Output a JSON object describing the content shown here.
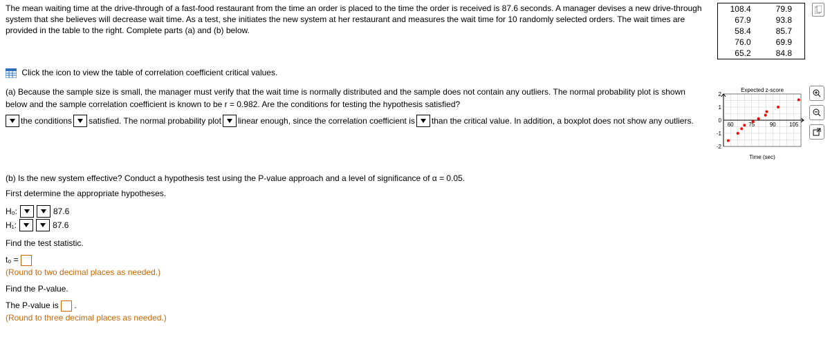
{
  "problem_text": "The mean waiting time at the drive-through of a fast-food restaurant from the time an order is placed to the time the order is received is 87.6 seconds. A manager devises a new drive-through system that she believes will decrease wait time. As a test, she initiates the new system at her restaurant and measures the wait time for 10 randomly selected orders. The wait times are provided in the table to the right. Complete parts (a) and (b) below.",
  "data_rows": [
    [
      "108.4",
      "79.9"
    ],
    [
      "67.9",
      "93.8"
    ],
    [
      "58.4",
      "85.7"
    ],
    [
      "76.0",
      "69.9"
    ],
    [
      "65.2",
      "84.8"
    ]
  ],
  "link_text": "Click the icon to view the table of correlation coefficient critical values.",
  "part_a_intro": "(a) Because the sample size is small, the manager must verify that the wait time is normally distributed and the sample does not contain any outliers. The normal probability plot is shown below and the sample correlation coefficient is known to be r = 0.982. Are the conditions for testing the hypothesis satisfied?",
  "sentence": {
    "s1": " the conditions ",
    "s2": " satisfied. The normal probability plot ",
    "s3": " linear enough, since the correlation coefficient is ",
    "s4": " than the critical value. In addition, a boxplot does not show any outliers."
  },
  "chart": {
    "title_y": "Expected z-score",
    "title_x": "Time (sec)",
    "y_ticks": [
      "2",
      "1",
      "0",
      "-1",
      "-2"
    ],
    "x_ticks": [
      "60",
      "75",
      "90",
      "105"
    ],
    "points": [
      {
        "x": 58.4,
        "y": -1.55
      },
      {
        "x": 65.2,
        "y": -1.0
      },
      {
        "x": 67.9,
        "y": -0.65
      },
      {
        "x": 69.9,
        "y": -0.38
      },
      {
        "x": 76.0,
        "y": -0.12
      },
      {
        "x": 79.9,
        "y": 0.12
      },
      {
        "x": 84.8,
        "y": 0.38
      },
      {
        "x": 85.7,
        "y": 0.65
      },
      {
        "x": 93.8,
        "y": 1.0
      },
      {
        "x": 108.4,
        "y": 1.55
      }
    ],
    "xlim": [
      55,
      110
    ],
    "ylim": [
      -2,
      2
    ],
    "point_color": "#ff0000",
    "grid_color": "#cccccc",
    "axis_color": "#000"
  },
  "part_b_intro": "(b) Is the new system effective? Conduct a hypothesis test using the P-value approach and a level of significance of α = 0.05.",
  "part_b_sub": "First determine the appropriate hypotheses.",
  "h0_label": "H₀:",
  "h1_label": "H₁:",
  "mu_value": "87.6",
  "find_stat": "Find the test statistic.",
  "t0_label": "t₀ = ",
  "round2": "(Round to two decimal places as needed.)",
  "find_p": "Find the P-value.",
  "p_sentence_a": "The P-value is ",
  "p_sentence_b": ".",
  "round3": "(Round to three decimal places as needed.)"
}
